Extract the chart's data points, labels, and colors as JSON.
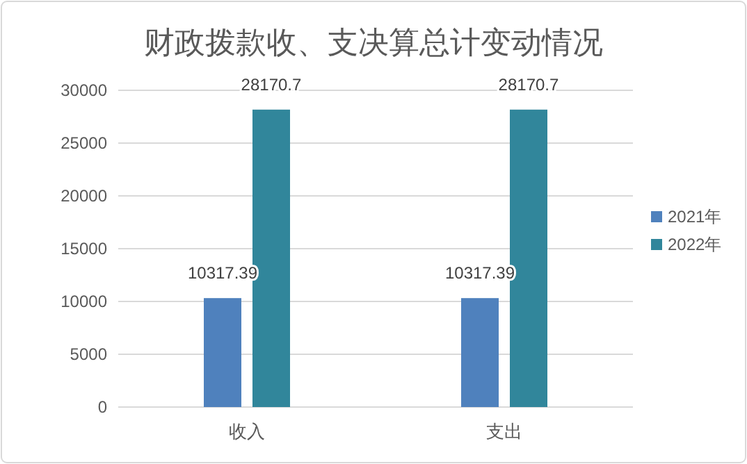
{
  "chart_data": {
    "type": "bar",
    "title": "财政拨款收、支决算总计变动情况",
    "categories": [
      "收入",
      "支出"
    ],
    "series": [
      {
        "name": "2021年",
        "color": "#4f81bd",
        "values": [
          10317.39,
          10317.39
        ]
      },
      {
        "name": "2022年",
        "color": "#31869b",
        "values": [
          28170.7,
          28170.7
        ]
      }
    ],
    "ylim": [
      0,
      30000
    ],
    "yticks": [
      0,
      5000,
      10000,
      15000,
      20000,
      25000,
      30000
    ],
    "grid": "y",
    "legend": "right",
    "data_labels": true
  }
}
